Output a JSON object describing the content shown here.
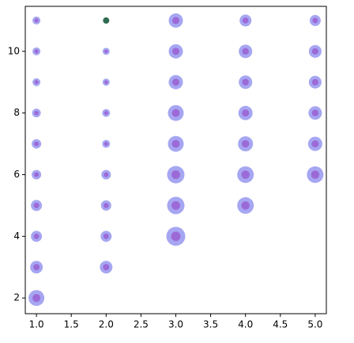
{
  "chart_data": {
    "type": "scatter",
    "xlim": [
      0.84,
      5.16
    ],
    "ylim": [
      1.49,
      11.46
    ],
    "xticks": [
      {
        "value": 1,
        "label": "1.0"
      },
      {
        "value": 1.5,
        "label": "1.5"
      },
      {
        "value": 2,
        "label": "2.0"
      },
      {
        "value": 2.5,
        "label": "2.5"
      },
      {
        "value": 3,
        "label": "3.0"
      },
      {
        "value": 3.5,
        "label": "3.5"
      },
      {
        "value": 4,
        "label": "4.0"
      },
      {
        "value": 4.5,
        "label": "4.5"
      },
      {
        "value": 5,
        "label": "5.0"
      }
    ],
    "yticks": [
      2,
      4,
      6,
      8,
      10
    ],
    "series": [
      {
        "color": "#a6a6f2",
        "x": [
          1,
          1,
          1,
          1,
          1,
          1,
          1,
          1,
          1,
          1,
          2,
          2,
          2,
          2,
          2,
          2,
          2,
          2,
          3,
          3,
          3,
          3,
          3,
          3,
          3,
          3,
          4,
          4,
          4,
          4,
          4,
          4,
          4,
          5,
          5,
          5,
          5,
          5,
          5
        ],
        "values": [
          2,
          3,
          4,
          5,
          6,
          7,
          8,
          9,
          10,
          11,
          3,
          4,
          5,
          6,
          7,
          8,
          9,
          10,
          4,
          5,
          6,
          7,
          8,
          9,
          10,
          11,
          5,
          6,
          7,
          8,
          9,
          10,
          11,
          6,
          7,
          8,
          9,
          10,
          11
        ],
        "sizes": [
          400,
          256,
          196,
          196,
          144,
          144,
          121,
          100,
          100,
          100,
          256,
          196,
          169,
          144,
          100,
          100,
          81,
          81,
          576,
          484,
          484,
          400,
          400,
          324,
          324,
          324,
          441,
          441,
          361,
          324,
          289,
          289,
          225,
          441,
          324,
          289,
          256,
          256,
          196
        ]
      },
      {
        "color": "#9c6ad6",
        "x": [
          1,
          1,
          1,
          1,
          1,
          1,
          1,
          1,
          1,
          1,
          2,
          2,
          2,
          2,
          2,
          2,
          2,
          2,
          3,
          3,
          3,
          3,
          3,
          3,
          3,
          3,
          4,
          4,
          4,
          4,
          4,
          4,
          4,
          5,
          5,
          5,
          5,
          5,
          5
        ],
        "values": [
          2,
          3,
          4,
          5,
          6,
          7,
          8,
          9,
          10,
          11,
          3,
          4,
          5,
          6,
          7,
          8,
          9,
          10,
          4,
          5,
          6,
          7,
          8,
          9,
          10,
          11,
          5,
          6,
          7,
          8,
          9,
          10,
          11,
          6,
          7,
          8,
          9,
          10,
          11
        ],
        "sizes": [
          100,
          64,
          49,
          49,
          36,
          36,
          30,
          25,
          25,
          25,
          64,
          49,
          42,
          36,
          25,
          25,
          20,
          20,
          144,
          121,
          121,
          100,
          100,
          81,
          81,
          81,
          110,
          110,
          90,
          81,
          72,
          72,
          56,
          110,
          81,
          72,
          64,
          64,
          49
        ]
      },
      {
        "color": "#2f6b50",
        "x": [
          2
        ],
        "values": [
          11
        ],
        "sizes": [
          64
        ]
      }
    ]
  }
}
